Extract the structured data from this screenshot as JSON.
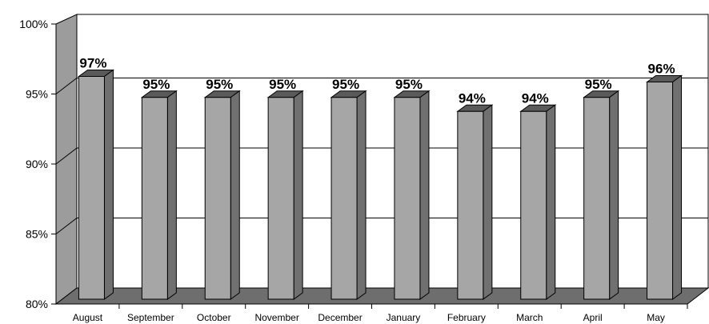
{
  "chart_data": {
    "type": "bar",
    "title": "",
    "xlabel": "",
    "ylabel": "",
    "categories": [
      "August",
      "September",
      "October",
      "November",
      "December",
      "January",
      "February",
      "March",
      "April",
      "May"
    ],
    "values": [
      96.6,
      95.1,
      95.1,
      95.1,
      95.1,
      95.1,
      94.1,
      94.1,
      95.1,
      96.2
    ],
    "data_labels": [
      "97%",
      "95%",
      "95%",
      "95%",
      "95%",
      "95%",
      "94%",
      "94%",
      "95%",
      "96%"
    ],
    "ylim": [
      80,
      100
    ],
    "yticks": [
      80,
      85,
      90,
      95,
      100
    ],
    "ytick_labels": [
      "80%",
      "85%",
      "90%",
      "95%",
      "100%"
    ],
    "grid": true,
    "legend": "none",
    "style": "3d-column",
    "colors": {
      "bar_front": "#a6a6a6",
      "bar_side": "#707070",
      "bar_top": "#5a5a5a",
      "wall": "#9c9c9c",
      "floor": "#6e6e6e",
      "plot_area": "#ffffff",
      "gridline": "#000000"
    }
  }
}
